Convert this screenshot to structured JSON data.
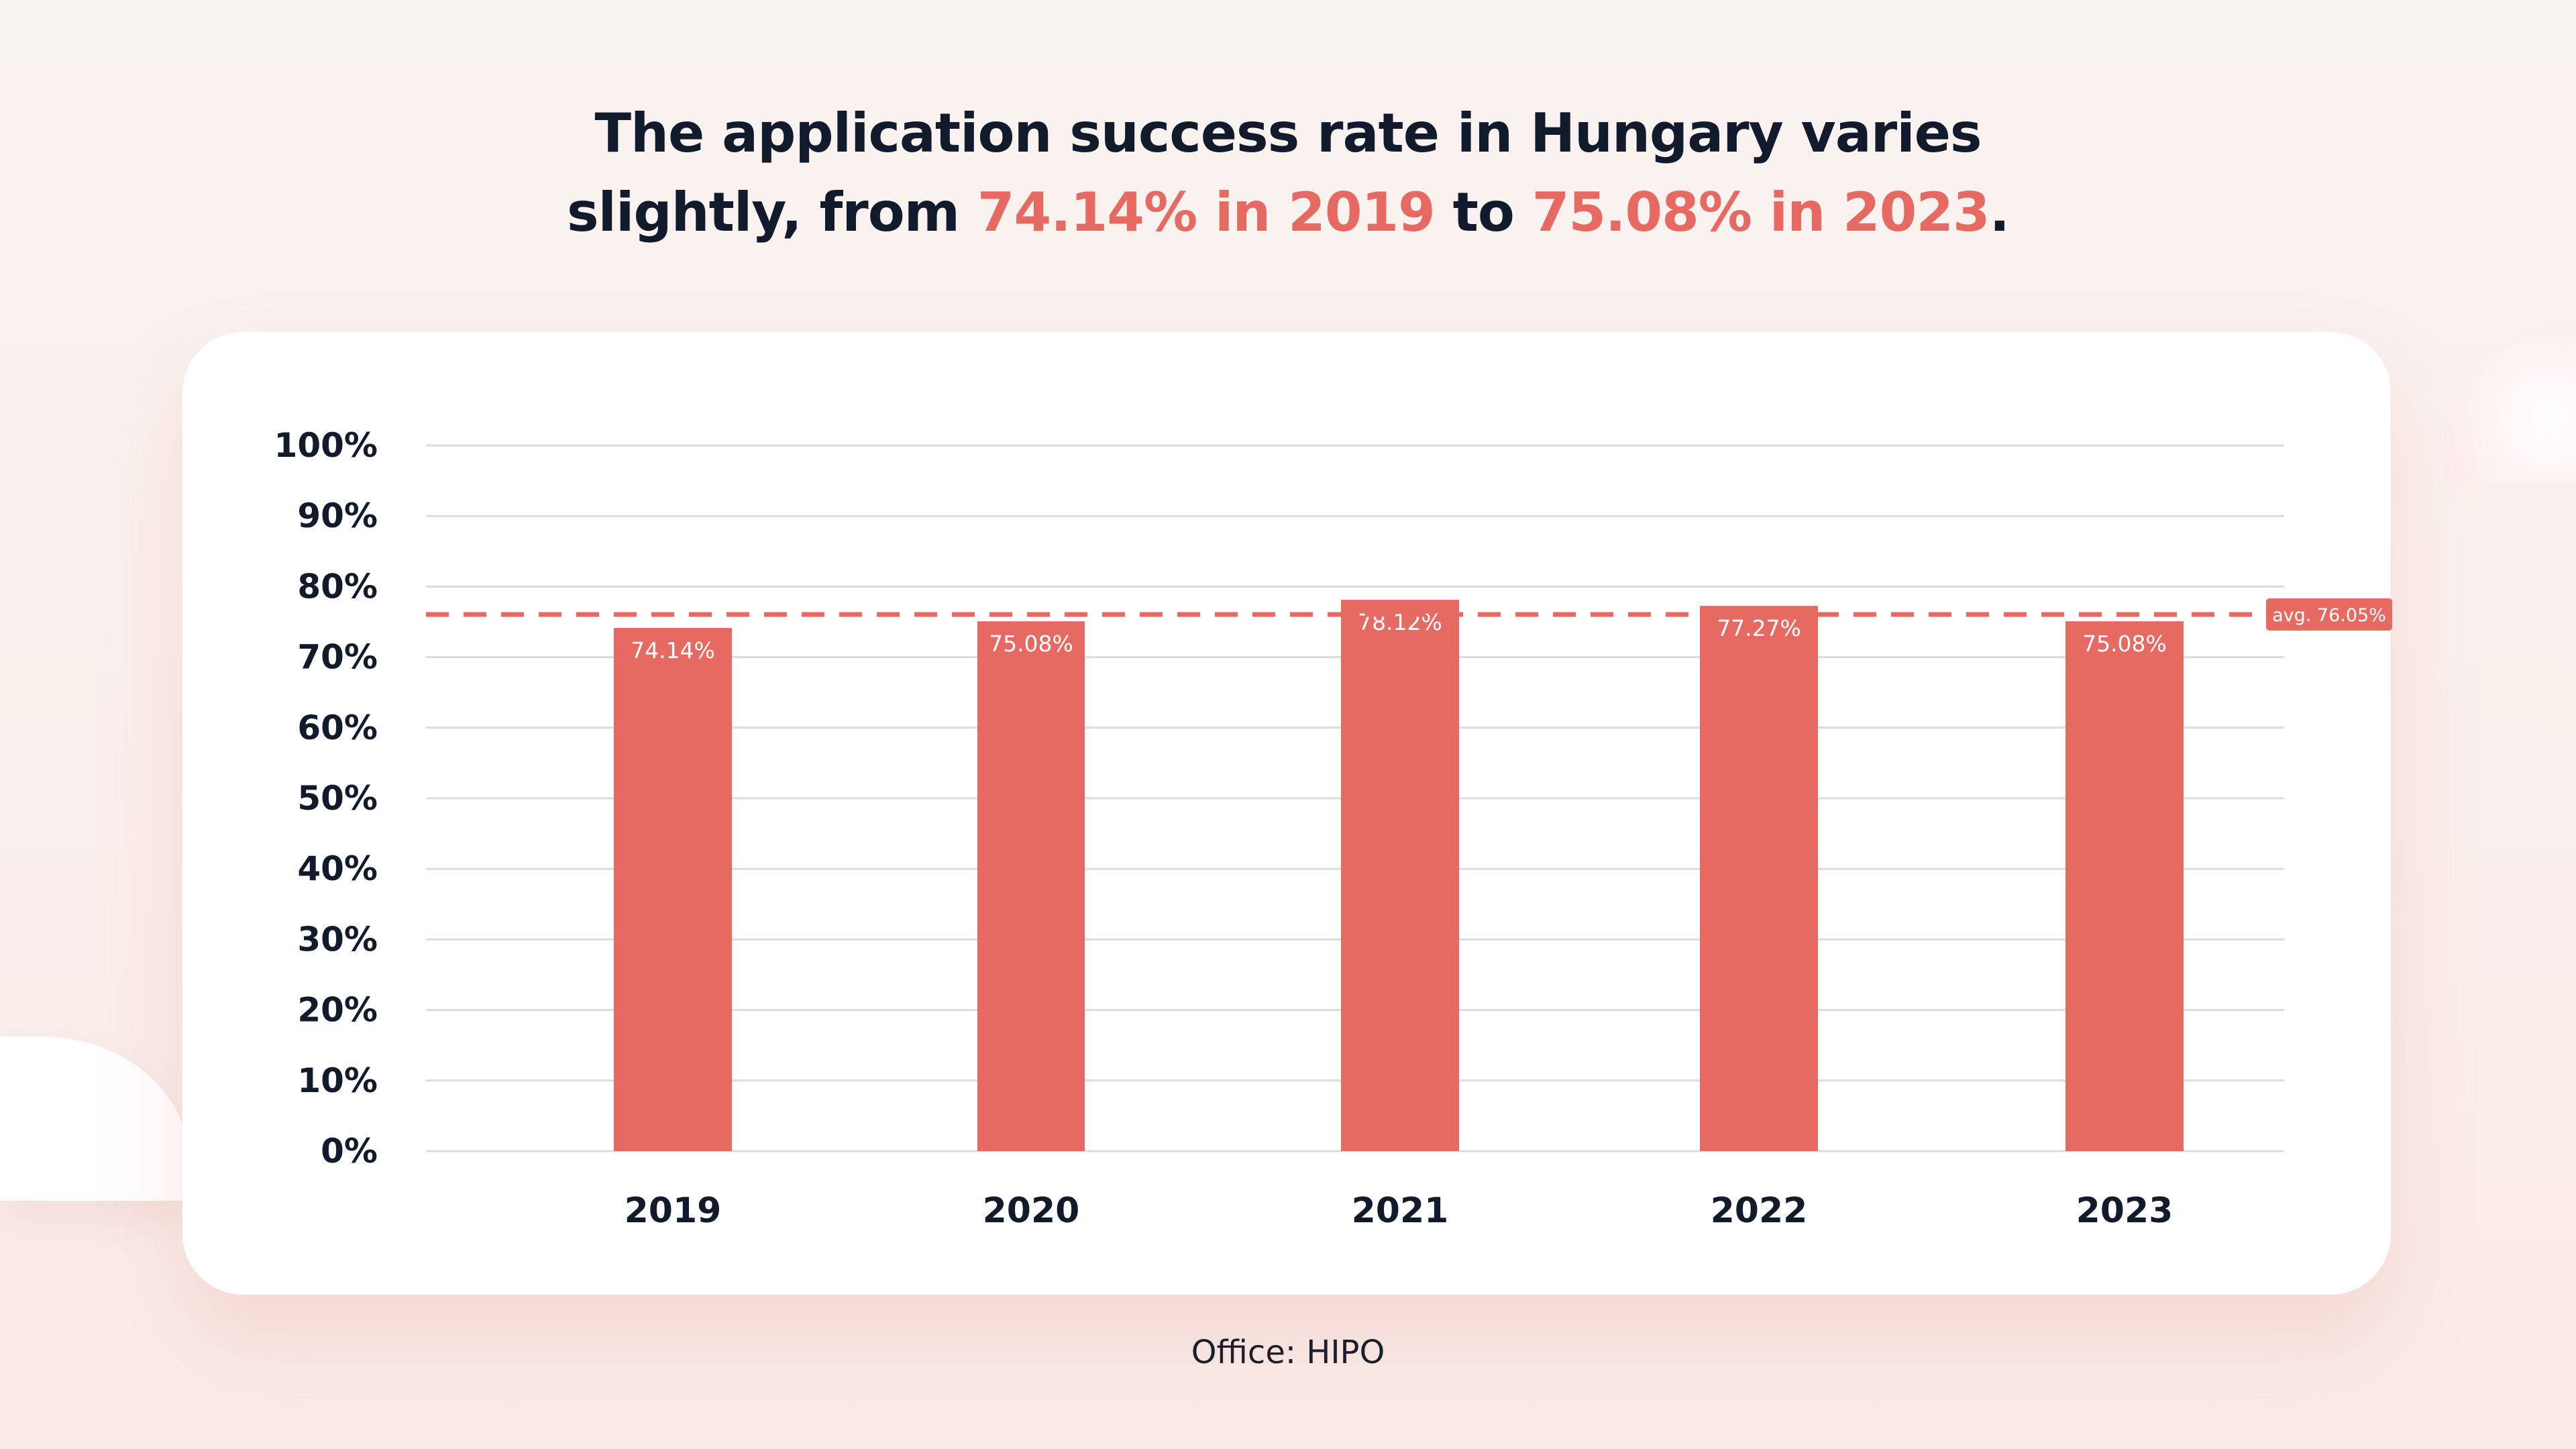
{
  "headline": {
    "line1": "The application success rate in Hungary varies",
    "line2_prefix": "slightly, from ",
    "line2_start": "74.14% in 2019",
    "line2_mid": " to ",
    "line2_end": "75.08% in 2023",
    "line2_suffix": "."
  },
  "source": "Office: HIPO",
  "colors": {
    "bar": "#e76a62",
    "text": "#111b2b",
    "grid": "#dcdcdc"
  },
  "chart_data": {
    "type": "bar",
    "title": "",
    "xlabel": "",
    "ylabel": "",
    "categories": [
      "2019",
      "2020",
      "2021",
      "2022",
      "2023"
    ],
    "values": [
      74.14,
      75.08,
      78.12,
      77.27,
      75.08
    ],
    "value_labels": [
      "74.14%",
      "75.08%",
      "78.12%",
      "77.27%",
      "75.08%"
    ],
    "ylim": [
      0,
      100
    ],
    "yticks": [
      0,
      10,
      20,
      30,
      40,
      50,
      60,
      70,
      80,
      90,
      100
    ],
    "ytick_labels": [
      "0%",
      "10%",
      "20%",
      "30%",
      "40%",
      "50%",
      "60%",
      "70%",
      "80%",
      "90%",
      "100%"
    ],
    "grid": true,
    "average": {
      "value": 76.05,
      "label": "avg. 76.05%"
    }
  }
}
